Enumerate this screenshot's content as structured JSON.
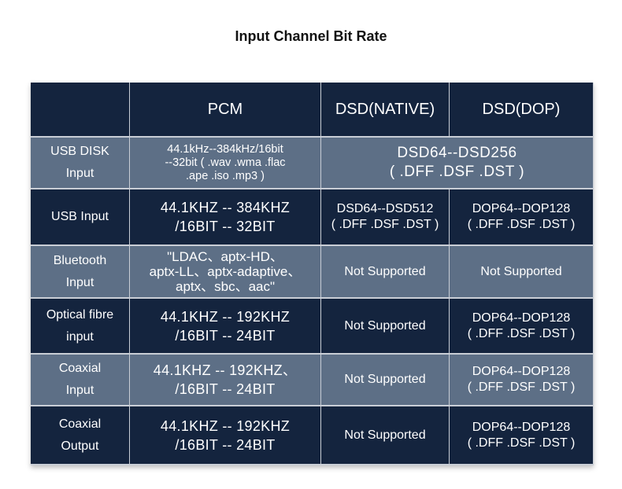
{
  "title": "Input Channel Bit Rate",
  "header": {
    "blank": "",
    "pcm": "PCM",
    "dsd_native": "DSD(NATIVE)",
    "dsd_dop": "DSD(DOP)"
  },
  "rows": [
    {
      "name_lines": [
        "USB DISK",
        "Input"
      ],
      "pcm_lines": [
        "44.1kHz--384kHz/16bit",
        "--32bit ( .wav .wma .flac",
        ".ape .iso .mp3 )"
      ],
      "dsd_merged_lines": [
        "DSD64--DSD256",
        "( .DFF .DSF .DST )"
      ]
    },
    {
      "name_lines": [
        "USB Input"
      ],
      "pcm_lines": [
        "44.1KHZ -- 384KHZ",
        "/16BIT -- 32BIT"
      ],
      "native_lines": [
        "DSD64--DSD512",
        "( .DFF .DSF .DST )"
      ],
      "dop_lines": [
        "DOP64--DOP128",
        "( .DFF .DSF .DST )"
      ]
    },
    {
      "name_lines": [
        "Bluetooth",
        "Input"
      ],
      "pcm_lines": [
        "\"LDAC、aptx-HD、",
        "aptx-LL、aptx-adaptive、",
        "aptx、sbc、aac\""
      ],
      "native_text": "Not Supported",
      "dop_text": "Not Supported"
    },
    {
      "name_lines": [
        "Optical fibre",
        "input"
      ],
      "pcm_lines": [
        "44.1KHZ -- 192KHZ",
        "/16BIT -- 24BIT"
      ],
      "native_text": "Not Supported",
      "dop_lines": [
        "DOP64--DOP128",
        "( .DFF .DSF .DST )"
      ]
    },
    {
      "name_lines": [
        "Coaxial",
        "Input"
      ],
      "pcm_lines": [
        "44.1KHZ -- 192KHZ、",
        "/16BIT -- 24BIT"
      ],
      "native_text": "Not Supported",
      "dop_lines": [
        "DOP64--DOP128",
        "( .DFF .DSF .DST )"
      ]
    },
    {
      "name_lines": [
        "Coaxial",
        "Output"
      ],
      "pcm_lines": [
        "44.1KHZ -- 192KHZ",
        "/16BIT -- 24BIT"
      ],
      "native_text": "Not Supported",
      "dop_lines": [
        "DOP64--DOP128",
        "( .DFF .DSF .DST )"
      ]
    }
  ],
  "colors": {
    "dark_cell": "#14243e",
    "light_cell": "#5d6f86"
  }
}
